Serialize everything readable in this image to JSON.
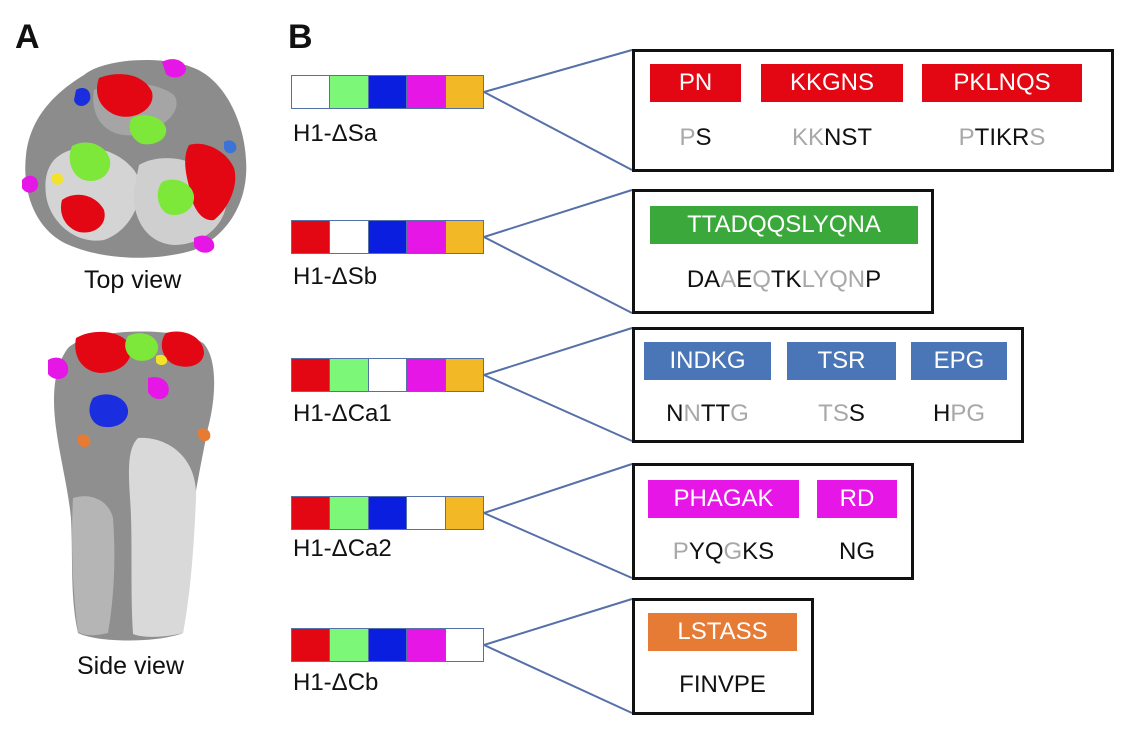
{
  "panels": {
    "a": "A",
    "b": "B"
  },
  "views": {
    "top": "Top view",
    "side": "Side view"
  },
  "colors": {
    "Sa": "#e30613",
    "Sb": "#3aa83a",
    "Ca1": "#4a76b8",
    "Ca2": "#e617e6",
    "Cb": "#e57b35",
    "bar_sa": "#e30613",
    "bar_sb": "#7cf777",
    "bar_ca1": "#0a1ee0",
    "bar_ca2": "#e617e6",
    "bar_cb": "#f2b826",
    "line": "#5670a8",
    "mutated_gray": "#a8a8a8"
  },
  "constructs": [
    {
      "label": "H1-ΔSa",
      "bar": [
        "white",
        "bar_sb",
        "bar_ca1",
        "bar_ca2",
        "bar_cb"
      ],
      "tags": [
        "PN",
        "KKGNS",
        "PKLNQS"
      ],
      "tag_color": "Sa",
      "seqs": [
        [
          [
            "m",
            "P"
          ],
          [
            "k",
            "S"
          ]
        ],
        [
          [
            "m",
            "KK"
          ],
          [
            "k",
            "NST"
          ]
        ],
        [
          [
            "m",
            "P"
          ],
          [
            "k",
            "TIKR"
          ],
          [
            "m",
            "S"
          ]
        ]
      ]
    },
    {
      "label": "H1-ΔSb",
      "bar": [
        "bar_sa",
        "white",
        "bar_ca1",
        "bar_ca2",
        "bar_cb"
      ],
      "tags": [
        "TTADQQSLYQNA"
      ],
      "tag_color": "Sb",
      "seqs": [
        [
          [
            "k",
            "DA"
          ],
          [
            "m",
            "A"
          ],
          [
            "k",
            "E"
          ],
          [
            "m",
            "Q"
          ],
          [
            "k",
            "TK"
          ],
          [
            "m",
            "LYQN"
          ],
          [
            "k",
            "P"
          ]
        ]
      ]
    },
    {
      "label": "H1-ΔCa1",
      "bar": [
        "bar_sa",
        "bar_sb",
        "white",
        "bar_ca2",
        "bar_cb"
      ],
      "tags": [
        "INDKG",
        "TSR",
        "EPG"
      ],
      "tag_color": "Ca1",
      "seqs": [
        [
          [
            "k",
            "N"
          ],
          [
            "m",
            "N"
          ],
          [
            "k",
            "TT"
          ],
          [
            "m",
            "G"
          ]
        ],
        [
          [
            "m",
            "TS"
          ],
          [
            "k",
            "S"
          ]
        ],
        [
          [
            "k",
            "H"
          ],
          [
            "m",
            "PG"
          ]
        ]
      ]
    },
    {
      "label": "H1-ΔCa2",
      "bar": [
        "bar_sa",
        "bar_sb",
        "bar_ca1",
        "white",
        "bar_cb"
      ],
      "tags": [
        "PHAGAK",
        "RD"
      ],
      "tag_color": "Ca2",
      "seqs": [
        [
          [
            "m",
            "P"
          ],
          [
            "k",
            "YQ"
          ],
          [
            "m",
            "G"
          ],
          [
            "k",
            "KS"
          ]
        ],
        [
          [
            "k",
            "NG"
          ]
        ]
      ]
    },
    {
      "label": "H1-ΔCb",
      "bar": [
        "bar_sa",
        "bar_sb",
        "bar_ca1",
        "bar_ca2",
        "white"
      ],
      "tags": [
        "LSTASS"
      ],
      "tag_color": "Cb",
      "seqs": [
        [
          [
            "k",
            "FINVPE"
          ]
        ]
      ]
    }
  ]
}
